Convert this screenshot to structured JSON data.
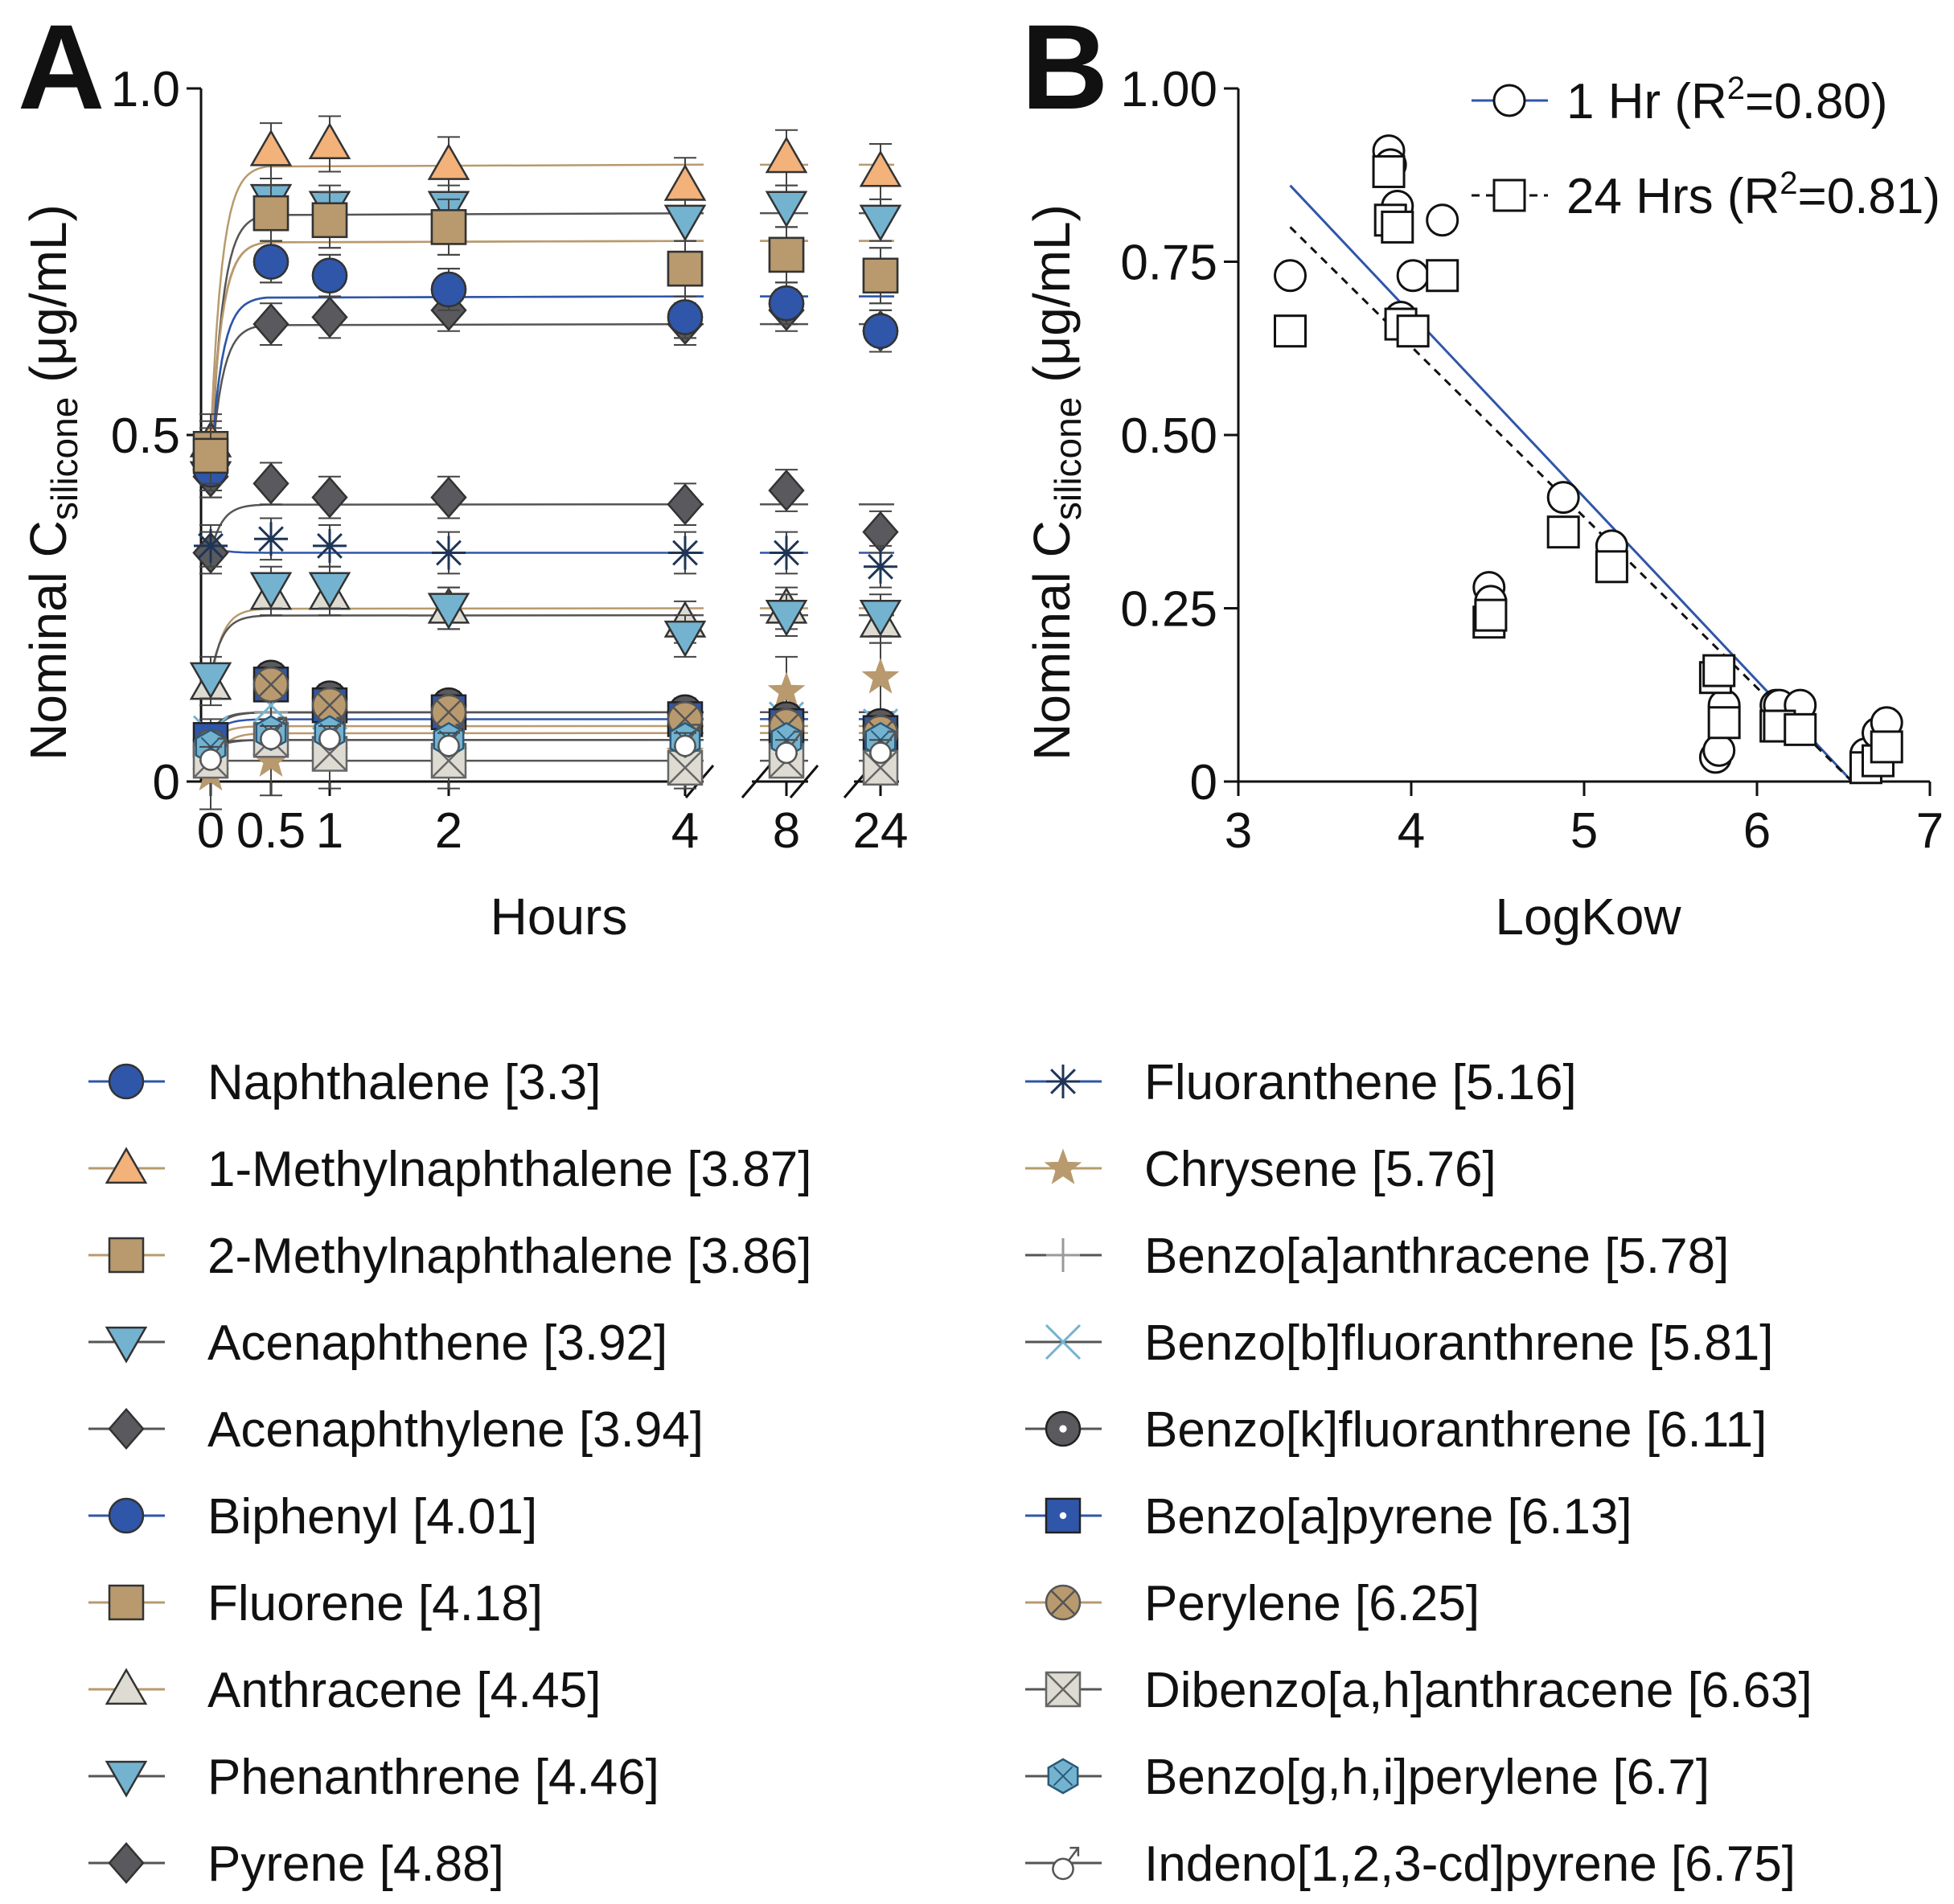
{
  "figure": {
    "panel_a_letter": "A",
    "panel_b_letter": "B"
  },
  "colors": {
    "Naphthalene": "#2f56a8",
    "1-Methylnaphthalene": "#f2b27a",
    "2-Methylnaphthalene": "#b89a6e",
    "Acenaphthene": "#74b3d0",
    "Acenaphthylene": "#5a5a5e",
    "Biphenyl": "#2f56a8",
    "Fluorene": "#b89a6e",
    "Anthracene": "#dddbd2",
    "Phenanthrene": "#74b3d0",
    "Pyrene": "#5a5a5e",
    "Fluoranthene": "#1f3556",
    "Chrysene": "#b89a6e",
    "Benzo[a]anthracene": "#9a9a9a",
    "Benzo[b]fluoranthrene": "#74b3d0",
    "Benzo[k]fluoranthrene": "#5a5a5e",
    "Benzo[a]pyrene": "#2f56a8",
    "Perylene": "#b89a6e",
    "Dibenzo[a,h]anthracene": "#dddbd2",
    "Benzo[g,h,i]perylene": "#74b3d0",
    "Indeno[1,2,3-cd]pyrene": "#555555",
    "fit_1hr": "#2f56a8",
    "fit_24hr": "#111111"
  },
  "chart_data": [
    {
      "panel": "A",
      "type": "scatter",
      "xlabel": "Hours",
      "ylabel_main": "Nominal C",
      "ylabel_sub": "silicone",
      "ylabel_unit": " (μg/mL)",
      "x_ticks": [
        "0",
        "0.5",
        "1",
        "2",
        "4",
        "8",
        "24"
      ],
      "x_times": [
        0,
        0.5,
        1,
        2,
        4,
        8,
        24
      ],
      "y_ticks": [
        "0",
        "0.5",
        "1.0"
      ],
      "ylim": [
        0,
        1.0
      ],
      "series": [
        {
          "name": "Naphthalene",
          "logkow": 3.3,
          "marker": "circle",
          "values": [
            0.45,
            0.75,
            0.73,
            0.71,
            0.67,
            0.69,
            0.65
          ],
          "err": 0.03,
          "plateau": 0.7
        },
        {
          "name": "1-Methylnaphthalene",
          "logkow": 3.87,
          "marker": "triangle-up",
          "values": [
            0.49,
            0.91,
            0.92,
            0.89,
            0.86,
            0.9,
            0.88
          ],
          "err": 0.04,
          "plateau": 0.89
        },
        {
          "name": "2-Methylnaphthalene",
          "logkow": 3.86,
          "marker": "square",
          "values": [
            0.48,
            0.82,
            0.81,
            0.8,
            0.74,
            0.76,
            0.73
          ],
          "err": 0.04,
          "plateau": 0.78
        },
        {
          "name": "Acenaphthene",
          "logkow": 3.92,
          "marker": "triangle-down",
          "values": [
            0.44,
            0.84,
            0.83,
            0.83,
            0.81,
            0.83,
            0.81
          ],
          "err": 0.03,
          "plateau": 0.82
        },
        {
          "name": "Acenaphthylene",
          "logkow": 3.94,
          "marker": "diamond",
          "values": [
            0.44,
            0.66,
            0.67,
            0.68,
            0.66,
            0.68,
            0.65
          ],
          "err": 0.03,
          "plateau": 0.66
        },
        {
          "name": "Biphenyl",
          "logkow": 4.01,
          "marker": "circle",
          "values": [
            0.45,
            0.75,
            0.73,
            0.71,
            0.67,
            0.69,
            0.65
          ],
          "err": 0.03,
          "plateau": 0.7
        },
        {
          "name": "Fluorene",
          "logkow": 4.18,
          "marker": "square",
          "values": [
            0.47,
            0.82,
            0.81,
            0.8,
            0.74,
            0.76,
            0.73
          ],
          "err": 0.04,
          "plateau": 0.78
        },
        {
          "name": "Anthracene",
          "logkow": 4.45,
          "marker": "triangle-up",
          "values": [
            0.14,
            0.27,
            0.27,
            0.25,
            0.23,
            0.25,
            0.23
          ],
          "err": 0.03,
          "plateau": 0.25
        },
        {
          "name": "Phenanthrene",
          "logkow": 4.46,
          "marker": "triangle-down",
          "values": [
            0.15,
            0.28,
            0.28,
            0.25,
            0.21,
            0.24,
            0.24
          ],
          "err": 0.03,
          "plateau": 0.24
        },
        {
          "name": "Pyrene",
          "logkow": 4.88,
          "marker": "diamond",
          "values": [
            0.33,
            0.43,
            0.41,
            0.41,
            0.4,
            0.42,
            0.36
          ],
          "err": 0.03,
          "plateau": 0.4
        },
        {
          "name": "Fluoranthene",
          "logkow": 5.16,
          "marker": "asterisk",
          "values": [
            0.34,
            0.35,
            0.34,
            0.33,
            0.33,
            0.33,
            0.31
          ],
          "err": 0.03,
          "plateau": 0.33
        },
        {
          "name": "Chrysene",
          "logkow": 5.76,
          "marker": "star",
          "values": [
            0.01,
            0.03,
            0.04,
            0.04,
            0.04,
            0.13,
            0.15
          ],
          "err": 0.05,
          "plateau": 0.07
        },
        {
          "name": "Benzo[a]anthracene",
          "logkow": 5.78,
          "marker": "plus",
          "values": [
            0.06,
            0.1,
            0.1,
            0.1,
            0.09,
            0.09,
            0.08
          ],
          "err": 0.02,
          "plateau": 0.1
        },
        {
          "name": "Benzo[b]fluoranthrene",
          "logkow": 5.81,
          "marker": "x",
          "values": [
            0.07,
            0.11,
            0.1,
            0.1,
            0.09,
            0.09,
            0.08
          ],
          "err": 0.02,
          "plateau": 0.1
        },
        {
          "name": "Benzo[k]fluoranthrene",
          "logkow": 6.11,
          "marker": "circle-dot",
          "values": [
            0.06,
            0.15,
            0.12,
            0.11,
            0.1,
            0.09,
            0.08
          ],
          "err": 0.02,
          "plateau": 0.1
        },
        {
          "name": "Benzo[a]pyrene",
          "logkow": 6.13,
          "marker": "square-dot",
          "values": [
            0.06,
            0.14,
            0.11,
            0.1,
            0.09,
            0.08,
            0.07
          ],
          "err": 0.02,
          "plateau": 0.09
        },
        {
          "name": "Perylene",
          "logkow": 6.25,
          "marker": "circle-x",
          "values": [
            0.05,
            0.14,
            0.11,
            0.1,
            0.09,
            0.08,
            0.07
          ],
          "err": 0.02,
          "plateau": 0.08
        },
        {
          "name": "Dibenzo[a,h]anthracene",
          "logkow": 6.63,
          "marker": "square-x",
          "values": [
            0.03,
            0.06,
            0.04,
            0.03,
            0.02,
            0.03,
            0.02
          ],
          "err": 0.01,
          "plateau": 0.03
        },
        {
          "name": "Benzo[g,h,i]perylene",
          "logkow": 6.7,
          "marker": "hexagon",
          "values": [
            0.05,
            0.07,
            0.07,
            0.06,
            0.06,
            0.06,
            0.06
          ],
          "err": 0.01,
          "plateau": 0.06
        },
        {
          "name": "Indeno[1,2,3-cd]pyrene",
          "logkow": 6.75,
          "marker": "male",
          "values": [
            0.04,
            0.07,
            0.07,
            0.06,
            0.06,
            0.05,
            0.05
          ],
          "err": 0.01,
          "plateau": 0.06
        }
      ]
    },
    {
      "panel": "B",
      "type": "scatter",
      "xlabel": "LogKow",
      "ylabel_main": "Nominal C",
      "ylabel_sub": "silicone",
      "ylabel_unit": " (μg/mL)",
      "xlim": [
        3,
        7
      ],
      "ylim": [
        0,
        1.0
      ],
      "x_ticks": [
        "3",
        "4",
        "5",
        "6",
        "7"
      ],
      "y_ticks": [
        "0",
        "0.25",
        "0.50",
        "0.75",
        "1.00"
      ],
      "legend": [
        {
          "label": "1 Hr (R",
          "sup": "2",
          "tail": "=0.80)",
          "marker": "circle",
          "line": "solid"
        },
        {
          "label": "24 Hrs (R",
          "sup": "2",
          "tail": "=0.81)",
          "marker": "square",
          "line": "dashed"
        }
      ],
      "series": [
        {
          "name": "1 Hr",
          "x": [
            3.3,
            3.87,
            3.88,
            3.92,
            3.94,
            4.01,
            4.18,
            4.45,
            4.46,
            4.88,
            5.16,
            5.76,
            5.78,
            5.81,
            6.11,
            6.13,
            6.25,
            6.63,
            6.7,
            6.75
          ],
          "y": [
            0.73,
            0.91,
            0.89,
            0.83,
            0.67,
            0.73,
            0.81,
            0.28,
            0.26,
            0.41,
            0.34,
            0.035,
            0.045,
            0.11,
            0.11,
            0.11,
            0.11,
            0.04,
            0.07,
            0.085
          ],
          "fit": [
            [
              3.3,
              0.86
            ],
            [
              6.55,
              0.0
            ]
          ]
        },
        {
          "name": "24 Hrs",
          "x": [
            3.3,
            3.87,
            3.88,
            3.92,
            3.94,
            4.01,
            4.18,
            4.45,
            4.46,
            4.88,
            5.16,
            5.76,
            5.78,
            5.81,
            6.11,
            6.13,
            6.25,
            6.63,
            6.7,
            6.75
          ],
          "y": [
            0.65,
            0.88,
            0.81,
            0.8,
            0.66,
            0.65,
            0.73,
            0.23,
            0.24,
            0.36,
            0.31,
            0.15,
            0.16,
            0.085,
            0.08,
            0.08,
            0.075,
            0.02,
            0.03,
            0.05
          ],
          "fit": [
            [
              3.3,
              0.8
            ],
            [
              6.55,
              0.0
            ]
          ]
        }
      ]
    }
  ]
}
